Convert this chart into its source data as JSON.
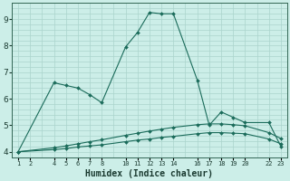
{
  "xlabel": "Humidex (Indice chaleur)",
  "bg_color": "#cceee8",
  "plot_bg_color": "#cceee8",
  "grid_color": "#aad4cc",
  "line_color": "#1a6b5a",
  "ylim": [
    3.8,
    9.6
  ],
  "xlim": [
    0.5,
    23.5
  ],
  "yticks": [
    4,
    5,
    6,
    7,
    8,
    9
  ],
  "xtick_positions": [
    1,
    2,
    4,
    5,
    6,
    7,
    8,
    10,
    11,
    12,
    13,
    14,
    16,
    17,
    18,
    19,
    20,
    22,
    23
  ],
  "xtick_labels": [
    "1",
    "2",
    "4",
    "5",
    "6",
    "7",
    "8",
    "10",
    "11",
    "12",
    "13",
    "14",
    "16",
    "17",
    "18",
    "19",
    "20",
    "22",
    "23"
  ],
  "series1_x": [
    1,
    4,
    5,
    6,
    7,
    8,
    10,
    11,
    12,
    13,
    14,
    16,
    17,
    18,
    19,
    20,
    22,
    23
  ],
  "series1_y": [
    4.0,
    6.6,
    6.5,
    6.4,
    6.15,
    5.85,
    7.95,
    8.5,
    9.25,
    9.2,
    9.2,
    6.7,
    5.0,
    5.5,
    5.3,
    5.1,
    5.1,
    4.2
  ],
  "series2_x": [
    1,
    4,
    5,
    6,
    7,
    8,
    10,
    11,
    12,
    13,
    14,
    16,
    17,
    18,
    19,
    20,
    22,
    23
  ],
  "series2_y": [
    4.0,
    4.15,
    4.22,
    4.3,
    4.38,
    4.45,
    4.62,
    4.7,
    4.78,
    4.85,
    4.92,
    5.02,
    5.05,
    5.05,
    5.02,
    4.98,
    4.72,
    4.5
  ],
  "series3_x": [
    1,
    4,
    5,
    6,
    7,
    8,
    10,
    11,
    12,
    13,
    14,
    16,
    17,
    18,
    19,
    20,
    22,
    23
  ],
  "series3_y": [
    4.0,
    4.08,
    4.12,
    4.18,
    4.22,
    4.26,
    4.38,
    4.44,
    4.48,
    4.54,
    4.58,
    4.68,
    4.72,
    4.72,
    4.7,
    4.68,
    4.48,
    4.3
  ]
}
